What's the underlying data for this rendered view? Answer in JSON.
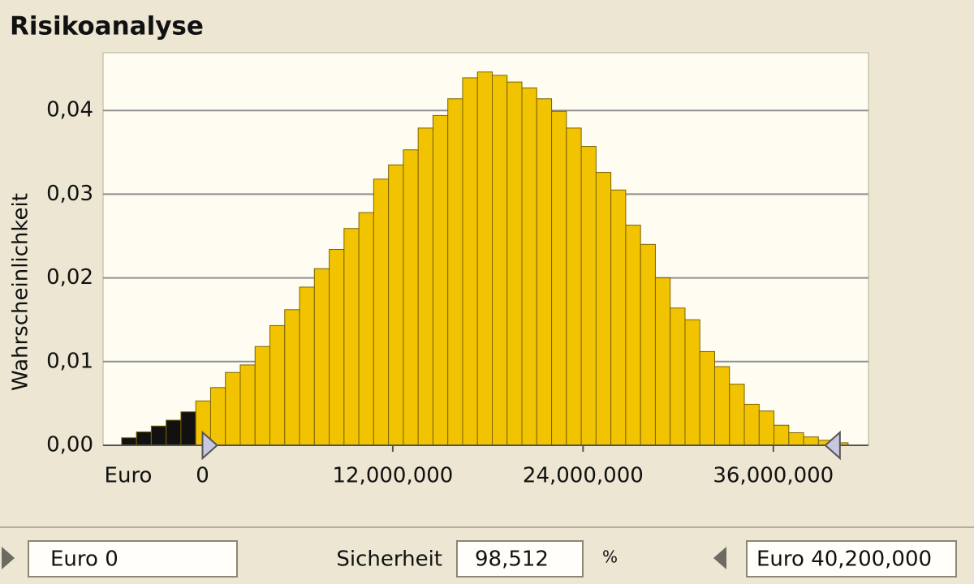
{
  "title": "Risikoanalyse",
  "chart_data": {
    "type": "histogram",
    "ylabel": "Wahrscheinlichkeit",
    "xlabel": "Euro",
    "bins": [
      -5100000,
      -4165000,
      -3230000,
      -2295000,
      -1360000,
      -425000,
      510000,
      1445000,
      2380000,
      3315000,
      4250000,
      5185000,
      6120000,
      7055000,
      7990000,
      8925000,
      9860000,
      10795000,
      11730000,
      12665000,
      13600000,
      14535000,
      15470000,
      16405000,
      17340000,
      18275000,
      19210000,
      20145000,
      21080000,
      22015000,
      22950000,
      23885000,
      24820000,
      25755000,
      26690000,
      27625000,
      28560000,
      29495000,
      30430000,
      31365000,
      32300000,
      33235000,
      34170000,
      35105000,
      36040000,
      36975000,
      37910000,
      38845000,
      39780000,
      40715000
    ],
    "values": [
      0.0009,
      0.0016,
      0.0023,
      0.003,
      0.004,
      0.0053,
      0.0069,
      0.0087,
      0.0096,
      0.0118,
      0.0143,
      0.0162,
      0.0189,
      0.0211,
      0.0234,
      0.0259,
      0.0278,
      0.0318,
      0.0335,
      0.0353,
      0.0379,
      0.0394,
      0.0414,
      0.0439,
      0.0446,
      0.0442,
      0.0434,
      0.0427,
      0.0414,
      0.0399,
      0.0379,
      0.0357,
      0.0326,
      0.0305,
      0.0263,
      0.024,
      0.02,
      0.0164,
      0.015,
      0.0112,
      0.0094,
      0.0073,
      0.0049,
      0.0041,
      0.0024,
      0.0015,
      0.001,
      0.0006,
      0.0003
    ],
    "color": "#f2c300",
    "tail_color": "#111111",
    "lower_bound": 0,
    "upper_bound": 40200000,
    "xlim": [
      -6270000,
      42000000
    ],
    "ylim": [
      0,
      0.0469
    ],
    "xticks": [
      0,
      {
        "value": 12000000,
        "label": "12,000,000"
      },
      {
        "value": 24000000,
        "label": "24,000,000"
      },
      {
        "value": 36000000,
        "label": "36,000,000"
      }
    ],
    "yticks": [
      {
        "value": 0,
        "label": "0,00"
      },
      {
        "value": 0.01,
        "label": "0,01"
      },
      {
        "value": 0.02,
        "label": "0,02"
      },
      {
        "value": 0.03,
        "label": "0,03"
      },
      {
        "value": 0.04,
        "label": "0,04"
      }
    ],
    "grid": true
  },
  "controls": {
    "lower_field": "Euro 0",
    "certainty_label": "Sicherheit",
    "certainty_value": "98,512",
    "certainty_unit": "%",
    "upper_field": "Euro 40,200,000"
  }
}
